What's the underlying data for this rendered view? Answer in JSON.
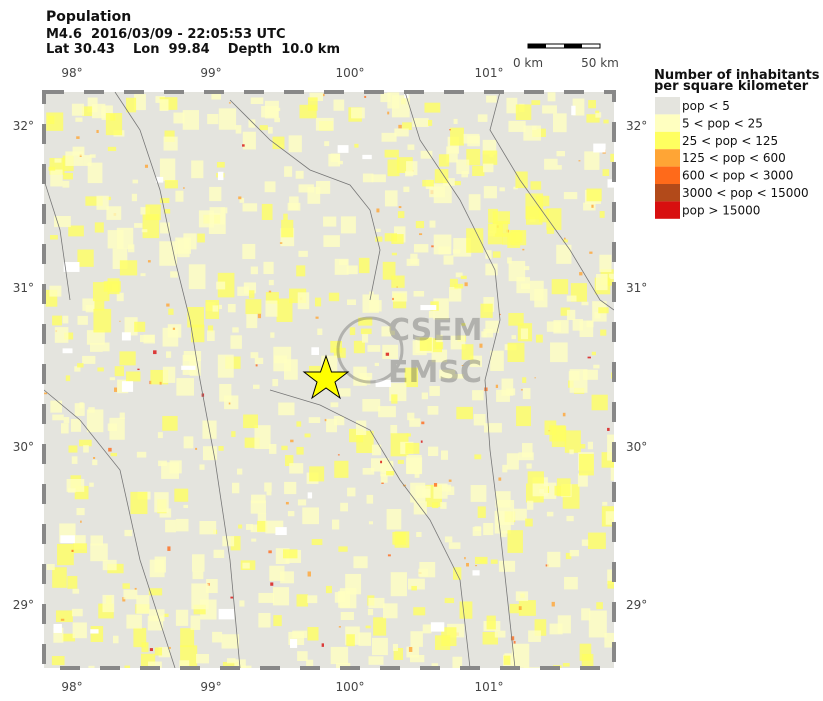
{
  "header": {
    "title": "Population",
    "event": "M4.6  2016/03/09 - 22:05:53 UTC",
    "location": "Lat 30.43    Lon  99.84    Depth  10.0 km"
  },
  "scale_bar": {
    "start": "0 km",
    "end": "50 km"
  },
  "map": {
    "lon_labels": [
      "98°",
      "99°",
      "100°",
      "101°"
    ],
    "lat_labels": [
      "32°",
      "31°",
      "30°",
      "29°"
    ],
    "watermark": [
      "CSEM",
      "EMSC"
    ]
  },
  "legend": {
    "title": [
      "Number of inhabitants",
      "per square kilometer"
    ],
    "items": [
      {
        "label": "pop < 5",
        "color": "#e4e4de"
      },
      {
        "label": "5 < pop < 25",
        "color": "#ffffc0"
      },
      {
        "label": "25 < pop < 125",
        "color": "#ffff60"
      },
      {
        "label": "125 < pop < 600",
        "color": "#ffa535"
      },
      {
        "label": "600 < pop < 3000",
        "color": "#ff6a1a"
      },
      {
        "label": "3000 < pop < 15000",
        "color": "#b24a1a"
      },
      {
        "label": "pop > 15000",
        "color": "#d80f0f"
      }
    ]
  }
}
